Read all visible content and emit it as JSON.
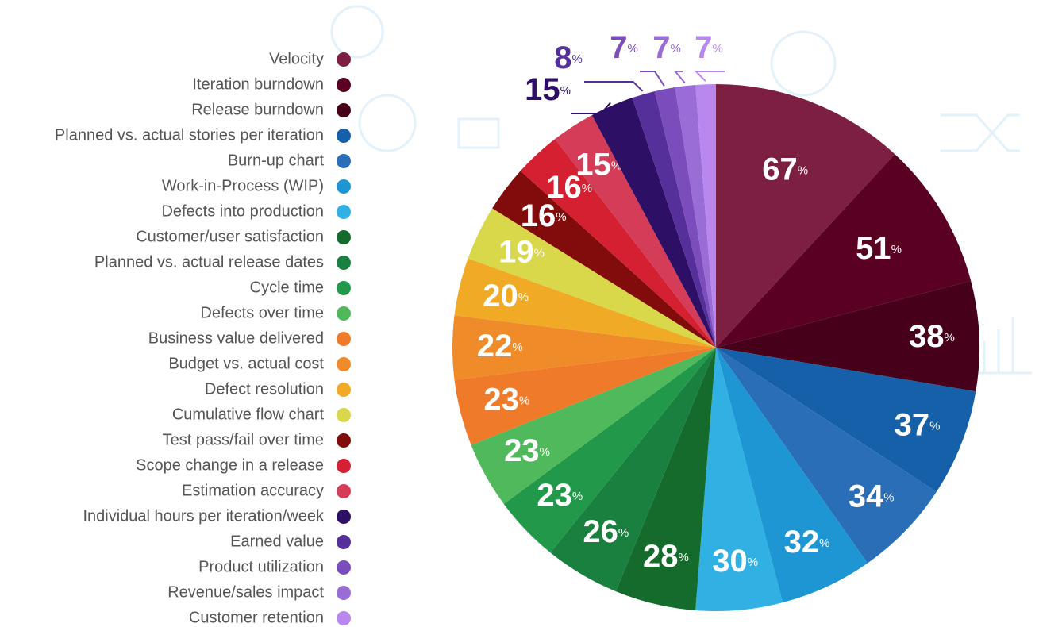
{
  "chart_data": {
    "type": "pie",
    "categories": [
      "Velocity",
      "Iteration burndown",
      "Release burndown",
      "Planned vs. actual stories per iteration",
      "Burn-up chart",
      "Work-in-Process (WIP)",
      "Defects into production",
      "Customer/user satisfaction",
      "Planned vs. actual release dates",
      "Cycle time",
      "Defects over time",
      "Business value delivered",
      "Budget vs. actual cost",
      "Defect resolution",
      "Cumulative flow chart",
      "Test pass/fail over time",
      "Scope change in a release",
      "Estimation accuracy",
      "Individual hours per iteration/week",
      "Earned value",
      "Product utilization",
      "Revenue/sales impact",
      "Customer retention"
    ],
    "values": [
      67,
      51,
      38,
      37,
      34,
      32,
      30,
      28,
      26,
      23,
      23,
      23,
      22,
      20,
      19,
      16,
      16,
      15,
      15,
      8,
      7,
      7,
      7
    ],
    "unit": "%",
    "colors": [
      "#7d1f42",
      "#5a0022",
      "#46001a",
      "#1560a8",
      "#2a6eb8",
      "#1e96d4",
      "#30b0e3",
      "#146b2c",
      "#1a8040",
      "#22984a",
      "#50b95c",
      "#ee7a2a",
      "#ef8b28",
      "#f0aa25",
      "#d8d84a",
      "#820c0c",
      "#d42030",
      "#d43c58",
      "#2e0f66",
      "#55309a",
      "#7a4cbc",
      "#9a6cd6",
      "#b888ee"
    ]
  }
}
